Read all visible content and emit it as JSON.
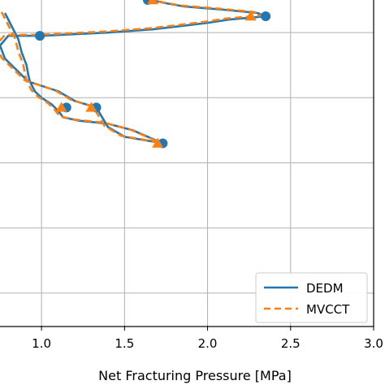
{
  "chart_data": {
    "type": "line",
    "xlabel": "Net Fracturing Pressure [MPa]",
    "ylabel": "",
    "xlim": [
      0.75,
      3.0
    ],
    "ylim": [
      0,
      100
    ],
    "xticks": [
      1.0,
      1.5,
      2.0,
      2.5,
      3.0
    ],
    "xtick_labels": [
      "1.0",
      "1.5",
      "2.0",
      "2.5",
      "3.0"
    ],
    "yticks": [
      10,
      30,
      50,
      70,
      90
    ],
    "grid": true,
    "legend_position": "bottom-right",
    "series": [
      {
        "name": "DEDM",
        "color": "#1f77b4",
        "linestyle": "solid",
        "marker": "circle",
        "points": [
          [
            0.78,
            96
          ],
          [
            0.82,
            92
          ],
          [
            0.86,
            88
          ],
          [
            0.88,
            84
          ],
          [
            0.91,
            80
          ],
          [
            0.92,
            77
          ],
          [
            0.93,
            75
          ],
          [
            0.96,
            72
          ],
          [
            1.0,
            70
          ],
          [
            1.06,
            68
          ],
          [
            1.1,
            66
          ],
          [
            1.13,
            64
          ],
          [
            1.22,
            63
          ],
          [
            1.4,
            62
          ],
          [
            1.55,
            60
          ],
          [
            1.73,
            56
          ],
          [
            1.73,
            56
          ],
          [
            1.5,
            58
          ],
          [
            1.4,
            61
          ],
          [
            1.33,
            67
          ],
          [
            1.2,
            69
          ],
          [
            1.1,
            72
          ],
          [
            0.92,
            75
          ],
          [
            0.78,
            82
          ],
          [
            0.75,
            86
          ],
          [
            0.8,
            89
          ],
          [
            1.0,
            89
          ],
          [
            1.4,
            90
          ],
          [
            1.67,
            91
          ],
          [
            1.84,
            92
          ],
          [
            2.0,
            93
          ],
          [
            2.13,
            94
          ],
          [
            2.35,
            95
          ],
          [
            2.3,
            96
          ],
          [
            2.1,
            97
          ],
          [
            1.86,
            98
          ],
          [
            1.75,
            99
          ],
          [
            1.66,
            100
          ]
        ],
        "marker_points": [
          [
            1.15,
            67
          ],
          [
            1.73,
            56
          ],
          [
            1.33,
            67
          ],
          [
            0.99,
            89
          ],
          [
            2.35,
            95
          ],
          [
            1.64,
            100
          ]
        ]
      },
      {
        "name": "MVCCT",
        "color": "#ff7f0e",
        "linestyle": "dashed",
        "marker": "triangle",
        "marker_points": [
          [
            1.12,
            67
          ],
          [
            1.7,
            56
          ],
          [
            1.3,
            67
          ],
          [
            2.26,
            95
          ],
          [
            1.67,
            100
          ]
        ]
      }
    ]
  }
}
